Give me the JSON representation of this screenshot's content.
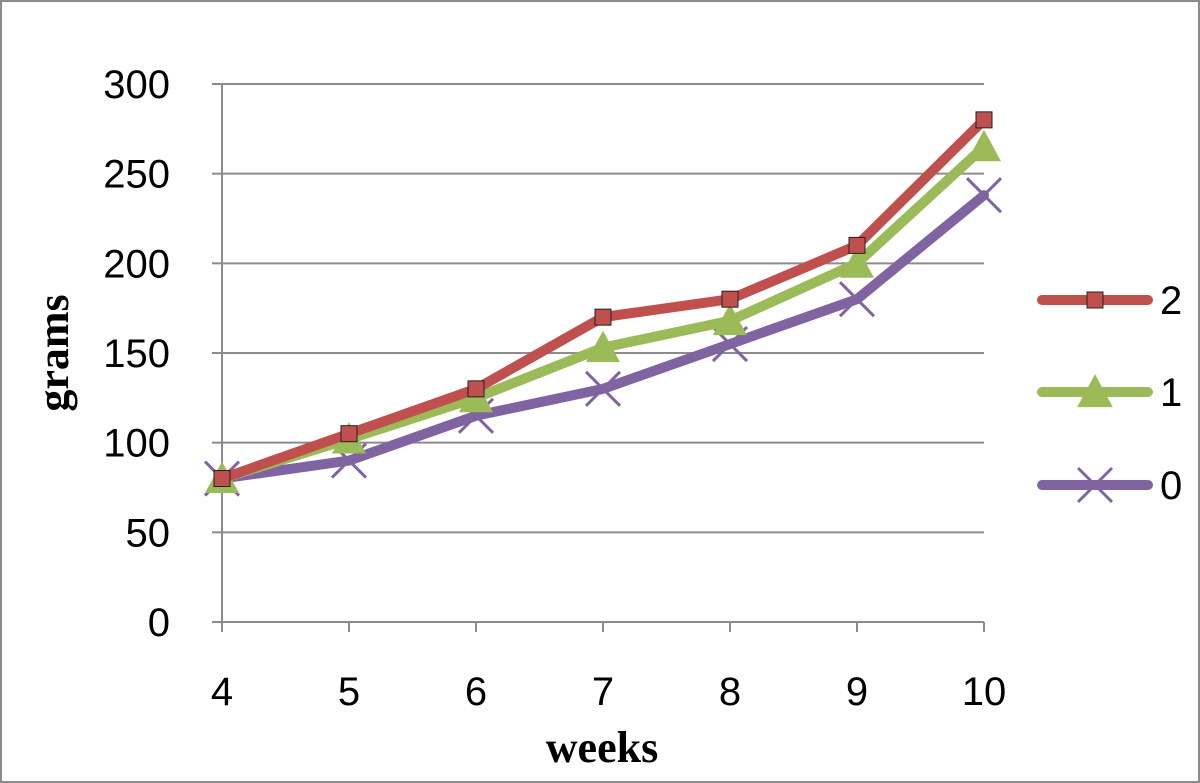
{
  "chart_data": {
    "type": "line",
    "title": "",
    "xlabel": "weeks",
    "ylabel": "grams",
    "x": [
      4,
      5,
      6,
      7,
      8,
      9,
      10
    ],
    "ylim": [
      0,
      300
    ],
    "yticks": [
      0,
      50,
      100,
      150,
      200,
      250,
      300
    ],
    "grid": "horizontal",
    "legend_position": "right",
    "series": [
      {
        "name": "2",
        "color": "#C0504D",
        "marker": "square",
        "values": [
          80,
          105,
          130,
          170,
          180,
          210,
          280
        ]
      },
      {
        "name": "1",
        "color": "#9BBB59",
        "marker": "triangle",
        "values": [
          80,
          102,
          125,
          153,
          168,
          200,
          265
        ]
      },
      {
        "name": "0",
        "color": "#8064A2",
        "marker": "x",
        "values": [
          80,
          90,
          115,
          130,
          155,
          180,
          238
        ]
      }
    ]
  }
}
